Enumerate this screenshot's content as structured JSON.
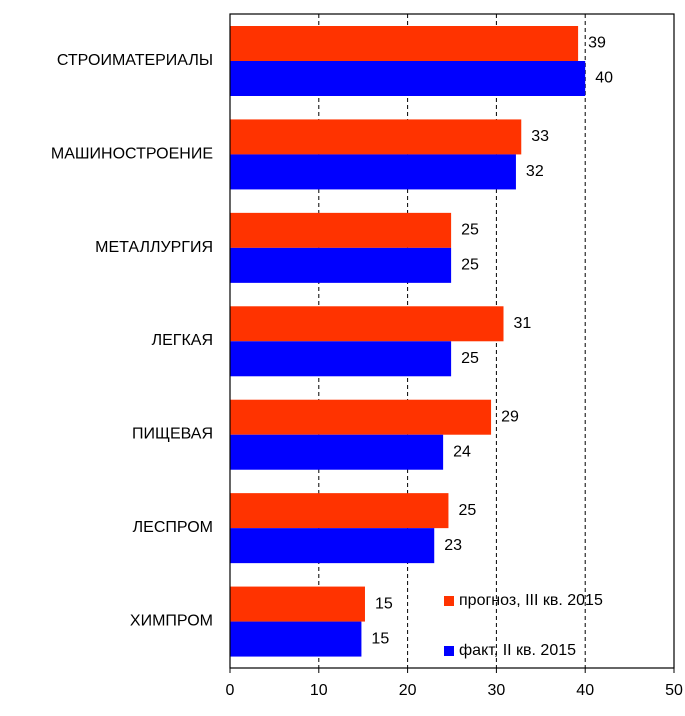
{
  "chart_data": {
    "type": "barh",
    "categories": [
      "СТРОИМАТЕРИАЛЫ",
      "МАШИНОСТРОЕНИЕ",
      "МЕТАЛЛУРГИЯ",
      "ЛЕГКАЯ",
      "ПИЩЕВАЯ",
      "ЛЕСПРОМ",
      "ХИМПРОМ"
    ],
    "series": [
      {
        "name": "прогноз, III кв. 2015",
        "color": "#ff3300",
        "values": [
          39.2,
          32.8,
          24.9,
          30.8,
          29.4,
          24.6,
          15.2
        ],
        "value_labels": [
          "39",
          "33",
          "25",
          "31",
          "29",
          "25",
          "15"
        ]
      },
      {
        "name": "факт, II кв. 2015",
        "color": "#0000ff",
        "values": [
          40.0,
          32.2,
          24.9,
          24.9,
          24.0,
          23.0,
          14.8
        ],
        "value_labels": [
          "40",
          "32",
          "25",
          "25",
          "24",
          "23",
          "15"
        ]
      }
    ],
    "xlim": [
      0,
      50
    ],
    "xticks": [
      0,
      10,
      20,
      30,
      40,
      50
    ],
    "grid": true,
    "legend": "lower right"
  }
}
